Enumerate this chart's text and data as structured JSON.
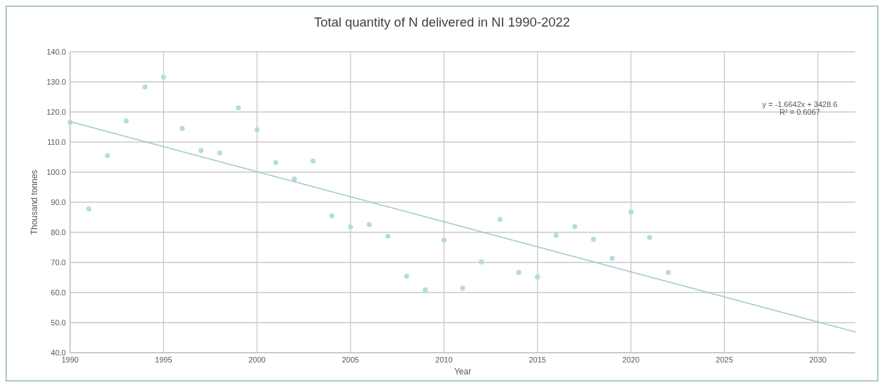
{
  "chart_data": {
    "type": "scatter",
    "title": "Total quantity of N delivered in NI 1990-2022",
    "xlabel": "Year",
    "ylabel": "Thousand tonnes",
    "x": [
      1990,
      1991,
      1992,
      1993,
      1994,
      1995,
      1996,
      1997,
      1998,
      1999,
      2000,
      2001,
      2002,
      2003,
      2004,
      2005,
      2006,
      2007,
      2008,
      2009,
      2010,
      2011,
      2012,
      2013,
      2014,
      2015,
      2016,
      2017,
      2018,
      2019,
      2020,
      2021,
      2022
    ],
    "series": [
      {
        "color": "#b5dcdc",
        "marker": "circle",
        "values": [
          116.5,
          87.8,
          105.5,
          117,
          128.3,
          131.6,
          114.5,
          107.2,
          106.4,
          121.4,
          114.1,
          103.2,
          97.7,
          103.7,
          85.5,
          81.8,
          82.6,
          78.7,
          65.4,
          60.9,
          77.4,
          61.5,
          70.2,
          84.3,
          66.7,
          65.2,
          79,
          81.9,
          77.7,
          71.4,
          86.7,
          78.3,
          66.7
        ]
      },
      {
        "type": "line",
        "color": "#9fc6ca",
        "line_style": "dotted",
        "x": [
          1990,
          2032
        ],
        "values": [
          116.8,
          46.9
        ]
      }
    ],
    "annotations": [
      "y = -1.6642x + 3428.6",
      "R² = 0.6067"
    ],
    "xlim": [
      1990,
      2032
    ],
    "xticks": [
      1990,
      1995,
      2000,
      2005,
      2010,
      2015,
      2020,
      2025,
      2030
    ],
    "ylim": [
      40,
      140
    ],
    "yticks": [
      {
        "value": 40,
        "label": "40.0"
      },
      {
        "value": 50,
        "label": "50.0"
      },
      {
        "value": 60,
        "label": "60.0"
      },
      {
        "value": 70,
        "label": "70.0"
      },
      {
        "value": 80,
        "label": "80.0"
      },
      {
        "value": 90,
        "label": "90.0"
      },
      {
        "value": 100,
        "label": "100.0"
      },
      {
        "value": 110,
        "label": "110.0"
      },
      {
        "value": 120,
        "label": "120.0"
      },
      {
        "value": 130,
        "label": "130.0"
      },
      {
        "value": 140,
        "label": "140.0"
      }
    ],
    "grid": true
  }
}
